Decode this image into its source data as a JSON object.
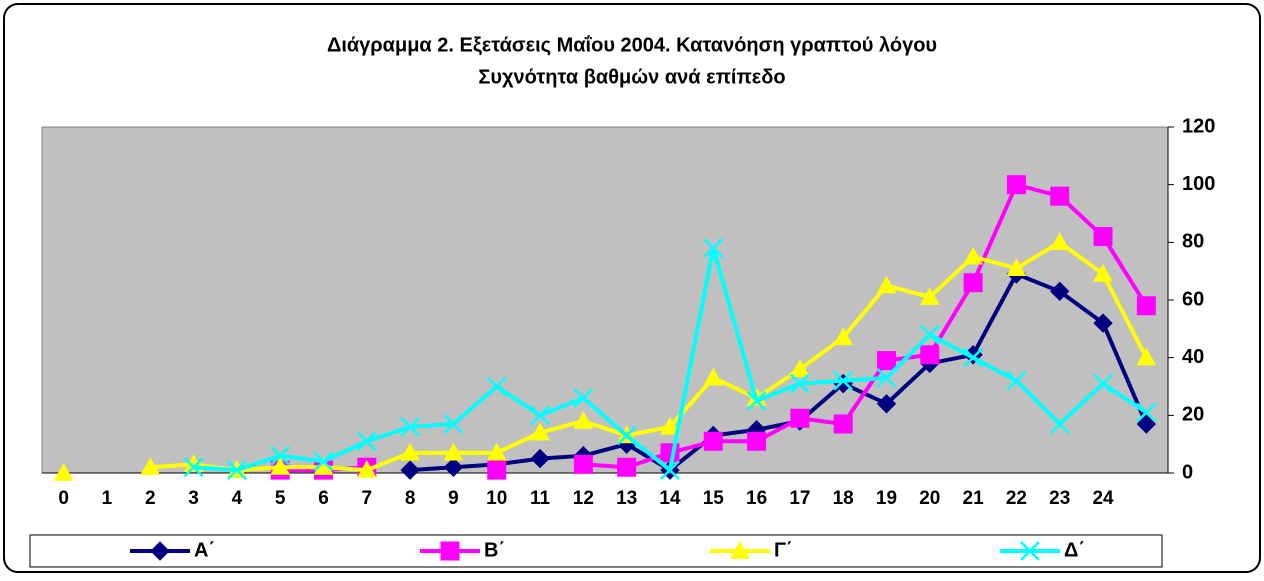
{
  "chart_data": {
    "type": "line",
    "title": "Διάγραμμα 2. Εξετάσεις Μαΐου 2004. Κατανόηση γραπτού λόγου",
    "subtitle": "Συχνότητα βαθμών ανά επίπεδο",
    "categories": [
      "0",
      "1",
      "2",
      "3",
      "4",
      "5",
      "6",
      "7",
      "8",
      "9",
      "10",
      "11",
      "12",
      "13",
      "14",
      "15",
      "16",
      "17",
      "18",
      "19",
      "20",
      "21",
      "22",
      "23",
      "24",
      null
    ],
    "series": [
      {
        "name": "Α΄",
        "color": "#000080",
        "marker": "diamond",
        "values": [
          null,
          null,
          null,
          null,
          null,
          null,
          null,
          null,
          1,
          2,
          3,
          5,
          6,
          10,
          1,
          13,
          15,
          18,
          31,
          24,
          38,
          41,
          69,
          63,
          52,
          17
        ]
      },
      {
        "name": "Β΄",
        "color": "#ff00ff",
        "marker": "square",
        "values": [
          null,
          null,
          null,
          null,
          null,
          1,
          1,
          2,
          null,
          null,
          1,
          null,
          3,
          2,
          7,
          11,
          11,
          19,
          17,
          39,
          41,
          66,
          100,
          96,
          82,
          58
        ]
      },
      {
        "name": "Γ΄",
        "color": "#ffff00",
        "marker": "triangle",
        "values": [
          0,
          null,
          2,
          3,
          1,
          2,
          2,
          1,
          7,
          7,
          7,
          14,
          18,
          13,
          16,
          33,
          26,
          36,
          47,
          65,
          61,
          75,
          71,
          80,
          69,
          40
        ]
      },
      {
        "name": "Δ΄",
        "color": "#00ffff",
        "marker": "x",
        "values": [
          null,
          null,
          null,
          2,
          1,
          6,
          4,
          11,
          16,
          17,
          30,
          20,
          26,
          13,
          1,
          78,
          25,
          31,
          32,
          33,
          48,
          40,
          32,
          17,
          31,
          21
        ]
      }
    ],
    "ylim": [
      0,
      120
    ],
    "yticks": [
      0,
      20,
      40,
      60,
      80,
      100,
      120
    ],
    "grid": false,
    "legend": "bottom",
    "plot_background": "#c0c0c0"
  }
}
